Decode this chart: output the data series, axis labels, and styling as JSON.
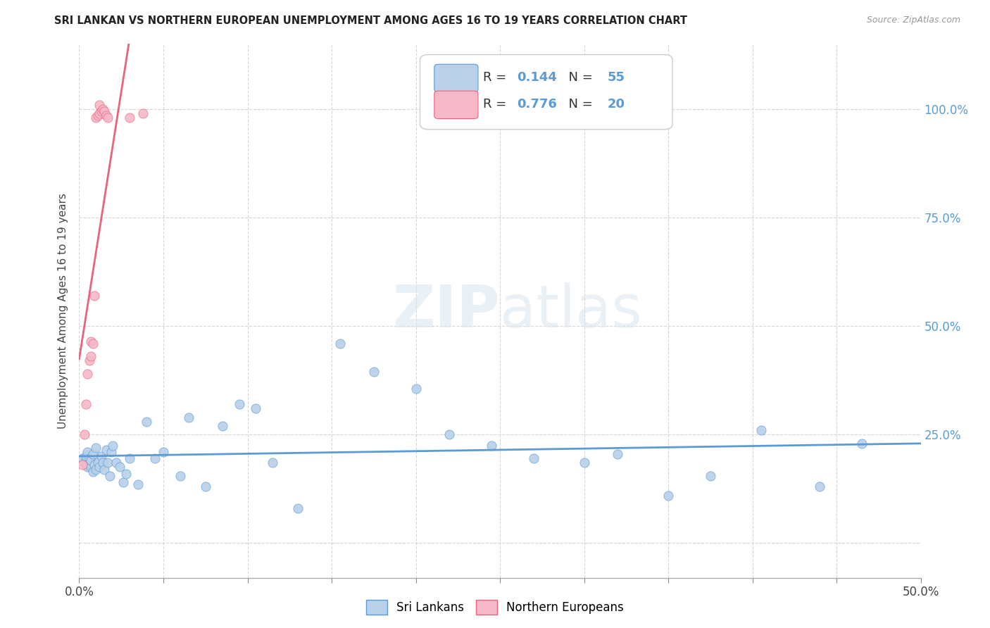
{
  "title": "SRI LANKAN VS NORTHERN EUROPEAN UNEMPLOYMENT AMONG AGES 16 TO 19 YEARS CORRELATION CHART",
  "source": "Source: ZipAtlas.com",
  "ylabel": "Unemployment Among Ages 16 to 19 years",
  "xlim": [
    0.0,
    0.5
  ],
  "ylim": [
    -0.08,
    1.15
  ],
  "blue_R": 0.144,
  "blue_N": 55,
  "pink_R": 0.776,
  "pink_N": 20,
  "blue_color": "#b8d0e8",
  "pink_color": "#f5b8c8",
  "blue_line_color": "#5b9bd5",
  "pink_line_color": "#e8647a",
  "watermark_color": "#dce8f0",
  "blue_x": [
    0.002,
    0.003,
    0.004,
    0.004,
    0.005,
    0.005,
    0.006,
    0.006,
    0.007,
    0.007,
    0.008,
    0.008,
    0.009,
    0.01,
    0.01,
    0.011,
    0.012,
    0.013,
    0.014,
    0.015,
    0.016,
    0.017,
    0.018,
    0.019,
    0.02,
    0.022,
    0.024,
    0.026,
    0.028,
    0.03,
    0.035,
    0.04,
    0.045,
    0.05,
    0.06,
    0.065,
    0.075,
    0.085,
    0.095,
    0.105,
    0.115,
    0.13,
    0.155,
    0.175,
    0.2,
    0.22,
    0.245,
    0.27,
    0.3,
    0.32,
    0.35,
    0.375,
    0.405,
    0.44,
    0.465
  ],
  "blue_y": [
    0.195,
    0.185,
    0.18,
    0.2,
    0.175,
    0.21,
    0.185,
    0.195,
    0.175,
    0.19,
    0.165,
    0.205,
    0.18,
    0.17,
    0.22,
    0.185,
    0.175,
    0.2,
    0.185,
    0.17,
    0.215,
    0.185,
    0.155,
    0.21,
    0.225,
    0.185,
    0.175,
    0.14,
    0.16,
    0.195,
    0.135,
    0.28,
    0.195,
    0.21,
    0.155,
    0.29,
    0.13,
    0.27,
    0.32,
    0.31,
    0.185,
    0.08,
    0.46,
    0.395,
    0.355,
    0.25,
    0.225,
    0.195,
    0.185,
    0.205,
    0.11,
    0.155,
    0.26,
    0.13,
    0.23
  ],
  "pink_x": [
    0.002,
    0.003,
    0.004,
    0.005,
    0.006,
    0.007,
    0.007,
    0.008,
    0.009,
    0.01,
    0.011,
    0.012,
    0.012,
    0.013,
    0.014,
    0.015,
    0.016,
    0.017,
    0.03,
    0.038
  ],
  "pink_y": [
    0.18,
    0.25,
    0.32,
    0.39,
    0.42,
    0.43,
    0.465,
    0.46,
    0.57,
    0.98,
    0.985,
    0.99,
    1.01,
    0.995,
    1.0,
    0.995,
    0.985,
    0.98,
    0.98,
    0.99
  ]
}
